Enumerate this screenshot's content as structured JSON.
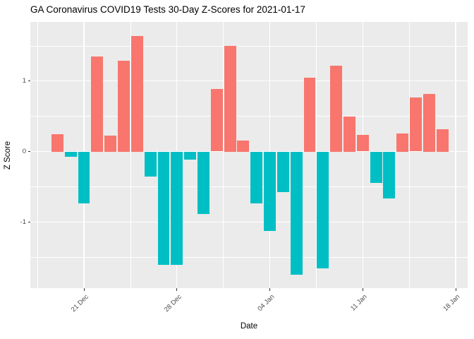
{
  "chart_data": {
    "type": "bar",
    "title": "GA Coronavirus COVID19 Tests 30-Day Z-Scores for 2021-01-17",
    "xlabel": "Date",
    "ylabel": "Z Score",
    "x": [
      "2020-12-19",
      "2020-12-20",
      "2020-12-21",
      "2020-12-22",
      "2020-12-23",
      "2020-12-24",
      "2020-12-25",
      "2020-12-26",
      "2020-12-27",
      "2020-12-28",
      "2020-12-29",
      "2020-12-30",
      "2020-12-31",
      "2021-01-01",
      "2021-01-02",
      "2021-01-03",
      "2021-01-04",
      "2021-01-05",
      "2021-01-06",
      "2021-01-07",
      "2021-01-08",
      "2021-01-09",
      "2021-01-10",
      "2021-01-11",
      "2021-01-12",
      "2021-01-13",
      "2021-01-14",
      "2021-01-15",
      "2021-01-16",
      "2021-01-17"
    ],
    "values": [
      0.25,
      -0.08,
      -0.74,
      1.35,
      0.23,
      1.29,
      1.64,
      -0.36,
      -1.61,
      -1.61,
      -0.12,
      -0.89,
      0.89,
      1.5,
      0.16,
      -0.74,
      -1.13,
      -0.58,
      -1.75,
      1.05,
      -1.66,
      1.22,
      0.5,
      0.24,
      -0.45,
      -0.67,
      0.26,
      0.77,
      0.82,
      0.32
    ],
    "ylim": [
      -1.94,
      1.84
    ],
    "y_ticks": [
      {
        "label": "1",
        "value": 1
      },
      {
        "label": "0",
        "value": 0
      },
      {
        "label": "-1",
        "value": -1
      }
    ],
    "y_minor_ticks": [
      1.5,
      0.5,
      -0.5,
      -1.5
    ],
    "x_ticks": [
      {
        "label": "21 Dec",
        "day_index": 2
      },
      {
        "label": "28 Dec",
        "day_index": 9
      },
      {
        "label": "04 Jan",
        "day_index": 16
      },
      {
        "label": "11 Jan",
        "day_index": 23
      },
      {
        "label": "18 Jan",
        "day_index": 30
      }
    ],
    "x_minor_day_indices": [
      -1.5,
      5.5,
      12.5,
      19.5,
      26.5
    ],
    "legend": "none",
    "grid": "on",
    "colors": {
      "positive_bar": "#F8766D",
      "negative_bar": "#00BFC4",
      "panel_background": "#EBEBEB",
      "gridline": "#FFFFFF",
      "tick_label": "#4D4D4D",
      "tick_mark": "#333333",
      "title_text": "#000000"
    }
  }
}
